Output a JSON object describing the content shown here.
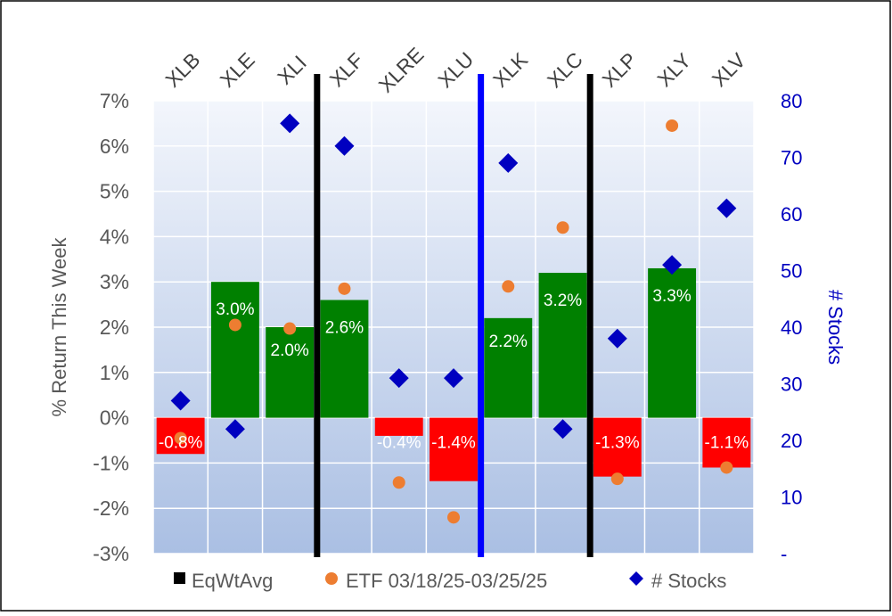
{
  "chart_data": {
    "type": "bar",
    "categories": [
      "XLB",
      "XLE",
      "XLI",
      "XLF",
      "XLRE",
      "XLU",
      "XLK",
      "XLC",
      "XLP",
      "XLY",
      "XLV"
    ],
    "series": [
      {
        "name": "EqWtAvg",
        "kind": "bar",
        "values": [
          -0.8,
          3.0,
          2.0,
          2.6,
          -0.4,
          -1.4,
          2.2,
          3.2,
          -1.3,
          3.3,
          -1.1
        ],
        "labels": [
          "-0.8%",
          "3.0%",
          "2.0%",
          "2.6%",
          "-0.4%",
          "-1.4%",
          "2.2%",
          "3.2%",
          "-1.3%",
          "3.3%",
          "-1.1%"
        ]
      },
      {
        "name": "ETF 03/18/25-03/25/25",
        "kind": "scatter",
        "axis": "left",
        "values": [
          -0.45,
          2.05,
          1.97,
          2.85,
          -1.43,
          -2.2,
          2.9,
          4.2,
          -1.35,
          6.45,
          -1.1
        ]
      },
      {
        "name": "# Stocks",
        "kind": "scatter",
        "axis": "right",
        "values": [
          27,
          22,
          76,
          72,
          31,
          31,
          69,
          22,
          38,
          51,
          61
        ]
      }
    ],
    "ylabel": "% Return This Week",
    "y2label": "# Stocks",
    "ylim": [
      -3,
      7
    ],
    "y2lim": [
      0,
      80
    ],
    "yticks": [
      "-3%",
      "-2%",
      "-1%",
      "0%",
      "1%",
      "2%",
      "3%",
      "4%",
      "5%",
      "6%",
      "7%"
    ],
    "y2ticks": [
      "-",
      "10",
      "20",
      "30",
      "40",
      "50",
      "60",
      "70",
      "80"
    ],
    "dividers_after": [
      {
        "after_index": 2,
        "color": "#000000"
      },
      {
        "after_index": 5,
        "color": "#0000ff"
      },
      {
        "after_index": 7,
        "color": "#000000"
      }
    ],
    "legend": "bottom",
    "colors": {
      "positive_bar": "#008000",
      "negative_bar": "#ff0000",
      "etf_marker": "#ed7d31",
      "stocks_marker": "#0000c0",
      "left_axis_text": "#595959",
      "right_axis_text": "#0000c0",
      "legend_eqwt_swatch": "#000000"
    }
  }
}
